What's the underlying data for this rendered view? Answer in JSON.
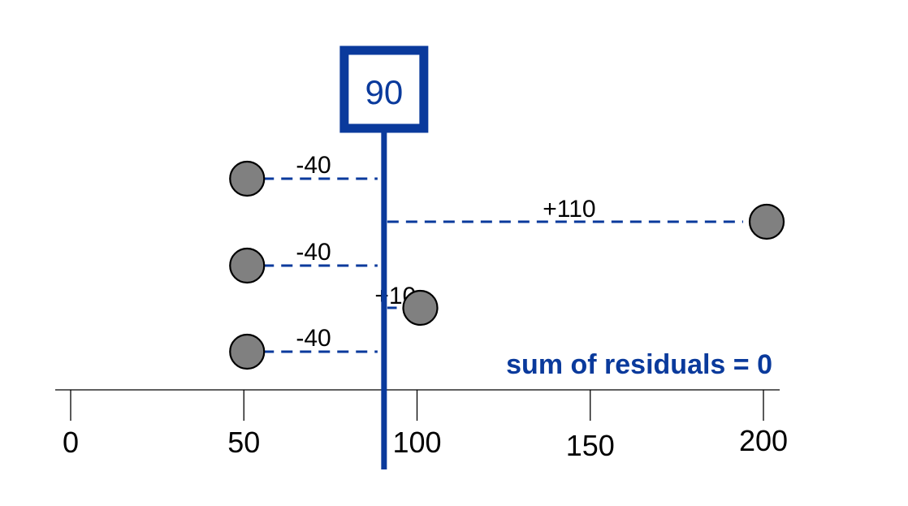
{
  "chart_data": {
    "type": "scatter",
    "title": "",
    "xlabel": "",
    "ylabel": "",
    "xlim": [
      0,
      200
    ],
    "x_ticks": [
      {
        "value": 0,
        "label": "0"
      },
      {
        "value": 50,
        "label": "50"
      },
      {
        "value": 100,
        "label": "100"
      },
      {
        "value": 150,
        "label": "150"
      },
      {
        "value": 200,
        "label": "200"
      }
    ],
    "mean": {
      "value": 90,
      "label": "90"
    },
    "points": [
      {
        "x": 50,
        "residual_label": "-40"
      },
      {
        "x": 200,
        "residual_label": "+110"
      },
      {
        "x": 50,
        "residual_label": "-40"
      },
      {
        "x": 100,
        "residual_label": "+10"
      },
      {
        "x": 50,
        "residual_label": "-40"
      }
    ],
    "annotation": "sum of residuals = 0",
    "colors": {
      "accent": "#0a3a9c",
      "point_fill": "#808080",
      "point_stroke": "#000000",
      "axis": "#000000"
    }
  }
}
